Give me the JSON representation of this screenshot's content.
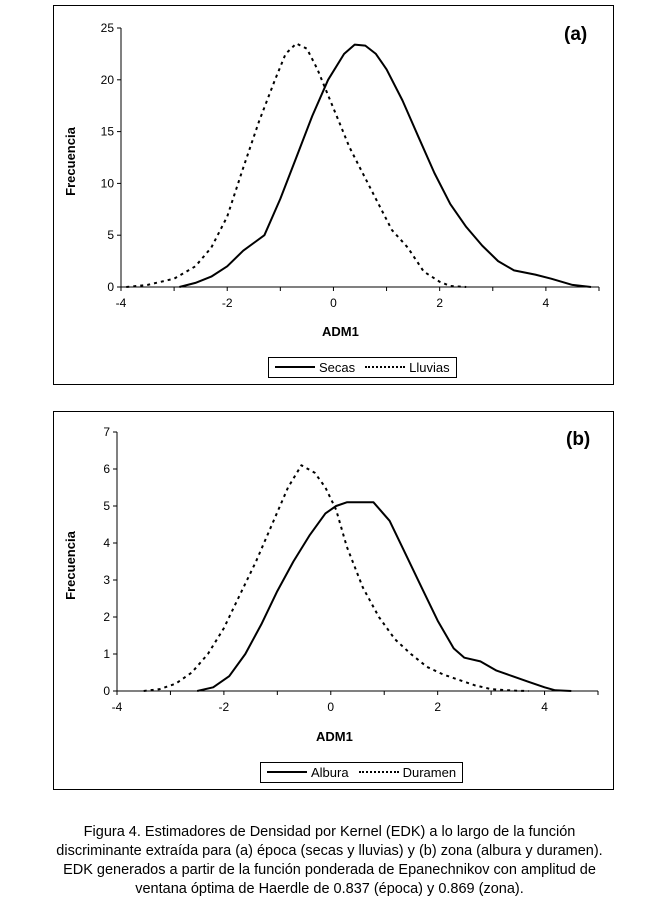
{
  "chart_data": [
    {
      "type": "line",
      "panel_label": "(a)",
      "xlabel": "ADM1",
      "ylabel": "Frecuencia",
      "xlim": [
        -4,
        5
      ],
      "ylim": [
        0,
        25
      ],
      "xticks": [
        -4,
        -2,
        0,
        2,
        4
      ],
      "yticks": [
        0,
        5,
        10,
        15,
        20,
        25
      ],
      "grid": false,
      "legend_position": "bottom-right",
      "series": [
        {
          "name": "Secas",
          "style": "solid",
          "x": [
            -2.9,
            -2.6,
            -2.3,
            -2.0,
            -1.7,
            -1.3,
            -1.0,
            -0.7,
            -0.4,
            -0.1,
            0.2,
            0.4,
            0.6,
            0.8,
            1.0,
            1.3,
            1.6,
            1.9,
            2.2,
            2.5,
            2.8,
            3.1,
            3.4,
            3.8,
            4.1,
            4.5,
            4.85
          ],
          "y": [
            0,
            0.4,
            1.0,
            2.0,
            3.5,
            5.0,
            8.5,
            12.5,
            16.5,
            20.0,
            22.5,
            23.4,
            23.3,
            22.5,
            21.0,
            18.0,
            14.5,
            11.0,
            8.0,
            5.8,
            4.0,
            2.5,
            1.6,
            1.2,
            0.8,
            0.2,
            0
          ]
        },
        {
          "name": "Lluvias",
          "style": "dotted",
          "x": [
            -3.9,
            -3.5,
            -3.0,
            -2.6,
            -2.3,
            -2.0,
            -1.7,
            -1.4,
            -1.1,
            -0.9,
            -0.7,
            -0.5,
            -0.3,
            -0.1,
            0.1,
            0.3,
            0.5,
            0.8,
            1.1,
            1.4,
            1.7,
            2.0,
            2.2,
            2.5
          ],
          "y": [
            0,
            0.2,
            0.8,
            2.0,
            3.8,
            6.8,
            11.5,
            16.0,
            20.0,
            22.5,
            23.5,
            23.0,
            21.0,
            18.5,
            16.0,
            13.5,
            11.5,
            8.5,
            5.5,
            3.8,
            1.5,
            0.5,
            0.1,
            0
          ]
        }
      ]
    },
    {
      "type": "line",
      "panel_label": "(b)",
      "xlabel": "ADM1",
      "ylabel": "Frecuencia",
      "xlim": [
        -4,
        5
      ],
      "ylim": [
        0,
        7
      ],
      "xticks": [
        -4,
        -2,
        0,
        2,
        4
      ],
      "yticks": [
        0,
        1,
        2,
        3,
        4,
        5,
        6,
        7
      ],
      "grid": false,
      "legend_position": "bottom-right",
      "series": [
        {
          "name": "Albura",
          "style": "solid",
          "x": [
            -2.5,
            -2.2,
            -1.9,
            -1.6,
            -1.3,
            -1.0,
            -0.7,
            -0.4,
            -0.1,
            0.1,
            0.3,
            0.6,
            0.8,
            1.1,
            1.4,
            1.7,
            2.0,
            2.3,
            2.5,
            2.8,
            3.1,
            3.4,
            3.7,
            4.0,
            4.2,
            4.5
          ],
          "y": [
            0,
            0.1,
            0.4,
            1.0,
            1.8,
            2.7,
            3.5,
            4.2,
            4.8,
            5.0,
            5.1,
            5.1,
            5.1,
            4.6,
            3.7,
            2.8,
            1.9,
            1.15,
            0.9,
            0.8,
            0.55,
            0.4,
            0.25,
            0.1,
            0.02,
            0
          ]
        },
        {
          "name": "Duramen",
          "style": "dotted",
          "x": [
            -3.5,
            -3.2,
            -2.9,
            -2.6,
            -2.3,
            -2.0,
            -1.7,
            -1.4,
            -1.1,
            -0.8,
            -0.55,
            -0.3,
            -0.1,
            0.1,
            0.3,
            0.6,
            0.9,
            1.2,
            1.5,
            1.8,
            2.1,
            2.4,
            2.7,
            3.0,
            3.4,
            3.7
          ],
          "y": [
            0,
            0.05,
            0.2,
            0.5,
            1.0,
            1.7,
            2.6,
            3.5,
            4.5,
            5.5,
            6.1,
            5.9,
            5.5,
            4.9,
            3.9,
            2.8,
            2.0,
            1.4,
            1.0,
            0.65,
            0.45,
            0.3,
            0.15,
            0.05,
            0.01,
            0
          ]
        }
      ]
    }
  ],
  "caption": [
    "Figura 4. Estimadores de Densidad por Kernel (EDK) a lo largo de la función",
    "discriminante extraída para (a) época (secas y lluvias) y (b) zona (albura y duramen).",
    "EDK generados a partir de la función ponderada de Epanechnikov con amplitud de",
    "ventana óptima de Haerdle de 0.837 (época) y 0.869 (zona)."
  ]
}
